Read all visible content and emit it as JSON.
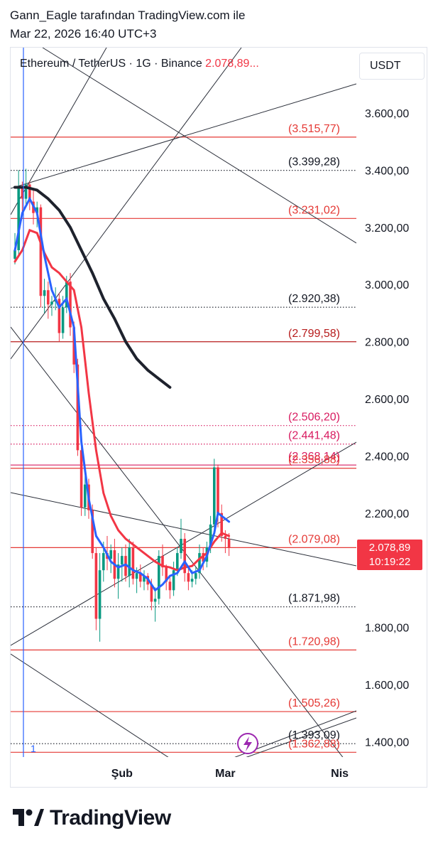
{
  "header": {
    "line1": "Gann_Eagle tarafından TradingView.com ile",
    "line2": "Mar 22, 2026 16:40 UTC+3"
  },
  "symbol": {
    "label": "Ethereum / TetherUS · 1G · Binance",
    "price": "2.078,89..."
  },
  "currency": "USDT",
  "last_price": {
    "value": "2.078,89",
    "countdown": "10:19:22",
    "color": "#f23645"
  },
  "brand": {
    "name": "TradingView",
    "icon": "tradingview-logo-icon"
  },
  "lightning_icon": "lightning-bolt-icon",
  "colors": {
    "up": "#089981",
    "down": "#f23645",
    "level": "#e53935",
    "ma_fast": "#2962ff",
    "ma_mid": "#f23645",
    "ma_slow": "#1e222d",
    "cursor": "#2962ff",
    "accent_purple": "#9c27b0"
  },
  "chart_data": {
    "type": "candlestick",
    "pair": "ETH/USDT",
    "timeframe": "1D",
    "y_range": [
      1350,
      3780
    ],
    "y_ticks": [
      {
        "value": 3600,
        "label": "3.600,00"
      },
      {
        "value": 3400,
        "label": "3.400,00"
      },
      {
        "value": 3200,
        "label": "3.200,00"
      },
      {
        "value": 3000,
        "label": "3.000,00"
      },
      {
        "value": 2800,
        "label": "2.800,00"
      },
      {
        "value": 2600,
        "label": "2.600,00"
      },
      {
        "value": 2400,
        "label": "2.400,00"
      },
      {
        "value": 2200,
        "label": "2.200,00"
      },
      {
        "value": 1800,
        "label": "1.800,00"
      },
      {
        "value": 1600,
        "label": "1.600,00"
      },
      {
        "value": 1400,
        "label": "1.400,00"
      }
    ],
    "x_ticks": [
      {
        "day": 29,
        "label": "Şub"
      },
      {
        "day": 57,
        "label": "Mar"
      },
      {
        "day": 88,
        "label": "Nis"
      }
    ],
    "x_range": [
      0,
      116
    ],
    "levels": [
      {
        "value": 3515.77,
        "label": "(3.515,77)",
        "style": "solid",
        "color": "#e53935"
      },
      {
        "value": 3399.28,
        "label": "(3.399,28)",
        "style": "dotted",
        "color": "#131722"
      },
      {
        "value": 3231.02,
        "label": "(3.231,02)",
        "style": "solid",
        "color": "#e53935"
      },
      {
        "value": 2920.38,
        "label": "(2.920,38)",
        "style": "dotted",
        "color": "#131722"
      },
      {
        "value": 2799.58,
        "label": "(2.799,58)",
        "style": "solid",
        "color": "#b71c1c"
      },
      {
        "value": 2506.2,
        "label": "(2.506,20)",
        "style": "dotted",
        "color": "#d81b60"
      },
      {
        "value": 2441.48,
        "label": "(2.441,48)",
        "style": "dotted",
        "color": "#d81b60"
      },
      {
        "value": 2368.14,
        "label": "(2.368,14)",
        "style": "solid",
        "color": "#d81b60"
      },
      {
        "value": 2356.88,
        "label": "(2.356,88)",
        "style": "solid",
        "color": "#e53935"
      },
      {
        "value": 2079.08,
        "label": "(2.079,08)",
        "style": "solid",
        "color": "#e53935"
      },
      {
        "value": 1871.98,
        "label": "(1.871,98)",
        "style": "dotted",
        "color": "#131722"
      },
      {
        "value": 1720.98,
        "label": "(1.720,98)",
        "style": "solid",
        "color": "#e53935"
      },
      {
        "value": 1505.26,
        "label": "(1.505,26)",
        "style": "solid",
        "color": "#e53935"
      },
      {
        "value": 1393.09,
        "label": "(1.393,09)",
        "style": "dotted",
        "color": "#131722"
      },
      {
        "value": 1362.88,
        "label": "(1.362,88)",
        "style": "solid",
        "color": "#e53935"
      }
    ],
    "candles": [
      {
        "d": 0,
        "o": 3090,
        "h": 3180,
        "l": 3070,
        "c": 3120
      },
      {
        "d": 1,
        "o": 3120,
        "h": 3400,
        "l": 3100,
        "c": 3340
      },
      {
        "d": 2,
        "o": 3340,
        "h": 3360,
        "l": 3250,
        "c": 3300
      },
      {
        "d": 3,
        "o": 3300,
        "h": 3405,
        "l": 3280,
        "c": 3350
      },
      {
        "d": 4,
        "o": 3350,
        "h": 3360,
        "l": 3260,
        "c": 3290
      },
      {
        "d": 5,
        "o": 3290,
        "h": 3330,
        "l": 3210,
        "c": 3250
      },
      {
        "d": 6,
        "o": 3250,
        "h": 3290,
        "l": 3200,
        "c": 3270
      },
      {
        "d": 7,
        "o": 3270,
        "h": 3280,
        "l": 2920,
        "c": 2960
      },
      {
        "d": 8,
        "o": 2960,
        "h": 3020,
        "l": 2900,
        "c": 2980
      },
      {
        "d": 9,
        "o": 2980,
        "h": 3010,
        "l": 2880,
        "c": 2930
      },
      {
        "d": 10,
        "o": 2930,
        "h": 2960,
        "l": 2890,
        "c": 2940
      },
      {
        "d": 11,
        "o": 2940,
        "h": 2990,
        "l": 2910,
        "c": 2950
      },
      {
        "d": 12,
        "o": 2950,
        "h": 2970,
        "l": 2800,
        "c": 2830
      },
      {
        "d": 13,
        "o": 2830,
        "h": 2960,
        "l": 2810,
        "c": 2920
      },
      {
        "d": 14,
        "o": 2920,
        "h": 3030,
        "l": 2900,
        "c": 3010
      },
      {
        "d": 15,
        "o": 3010,
        "h": 3040,
        "l": 2820,
        "c": 2850
      },
      {
        "d": 16,
        "o": 2850,
        "h": 2870,
        "l": 2690,
        "c": 2720
      },
      {
        "d": 17,
        "o": 2720,
        "h": 2740,
        "l": 2400,
        "c": 2420
      },
      {
        "d": 18,
        "o": 2420,
        "h": 2440,
        "l": 2190,
        "c": 2220
      },
      {
        "d": 19,
        "o": 2220,
        "h": 2330,
        "l": 2190,
        "c": 2300
      },
      {
        "d": 20,
        "o": 2300,
        "h": 2320,
        "l": 2180,
        "c": 2210
      },
      {
        "d": 21,
        "o": 2210,
        "h": 2230,
        "l": 2040,
        "c": 2060
      },
      {
        "d": 22,
        "o": 2060,
        "h": 2080,
        "l": 1790,
        "c": 1830
      },
      {
        "d": 23,
        "o": 1830,
        "h": 2060,
        "l": 1750,
        "c": 2000
      },
      {
        "d": 24,
        "o": 2000,
        "h": 2100,
        "l": 1960,
        "c": 2060
      },
      {
        "d": 25,
        "o": 2060,
        "h": 2120,
        "l": 2000,
        "c": 2040
      },
      {
        "d": 26,
        "o": 2040,
        "h": 2090,
        "l": 1990,
        "c": 2070
      },
      {
        "d": 27,
        "o": 2070,
        "h": 2110,
        "l": 1940,
        "c": 1970
      },
      {
        "d": 28,
        "o": 1970,
        "h": 2060,
        "l": 1900,
        "c": 2020
      },
      {
        "d": 29,
        "o": 2020,
        "h": 2080,
        "l": 1960,
        "c": 2050
      },
      {
        "d": 30,
        "o": 2050,
        "h": 2090,
        "l": 1960,
        "c": 1980
      },
      {
        "d": 31,
        "o": 1980,
        "h": 2110,
        "l": 1940,
        "c": 2080
      },
      {
        "d": 32,
        "o": 2080,
        "h": 2100,
        "l": 1950,
        "c": 1970
      },
      {
        "d": 33,
        "o": 1970,
        "h": 2010,
        "l": 1920,
        "c": 1990
      },
      {
        "d": 34,
        "o": 1990,
        "h": 2020,
        "l": 1940,
        "c": 1960
      },
      {
        "d": 35,
        "o": 1960,
        "h": 2000,
        "l": 1930,
        "c": 1980
      },
      {
        "d": 36,
        "o": 1980,
        "h": 1990,
        "l": 1930,
        "c": 1950
      },
      {
        "d": 37,
        "o": 1950,
        "h": 1970,
        "l": 1860,
        "c": 1890
      },
      {
        "d": 38,
        "o": 1890,
        "h": 1940,
        "l": 1820,
        "c": 1900
      },
      {
        "d": 39,
        "o": 1900,
        "h": 2070,
        "l": 1880,
        "c": 2050
      },
      {
        "d": 40,
        "o": 2050,
        "h": 2090,
        "l": 1980,
        "c": 2010
      },
      {
        "d": 41,
        "o": 2010,
        "h": 2020,
        "l": 1930,
        "c": 1960
      },
      {
        "d": 42,
        "o": 1960,
        "h": 1980,
        "l": 1900,
        "c": 1930
      },
      {
        "d": 43,
        "o": 1930,
        "h": 2030,
        "l": 1910,
        "c": 2000
      },
      {
        "d": 44,
        "o": 2000,
        "h": 2080,
        "l": 1980,
        "c": 2060
      },
      {
        "d": 45,
        "o": 2060,
        "h": 2180,
        "l": 2040,
        "c": 2110
      },
      {
        "d": 46,
        "o": 2110,
        "h": 2130,
        "l": 1960,
        "c": 1990
      },
      {
        "d": 47,
        "o": 1990,
        "h": 2010,
        "l": 1930,
        "c": 1960
      },
      {
        "d": 48,
        "o": 1960,
        "h": 2000,
        "l": 1940,
        "c": 1970
      },
      {
        "d": 49,
        "o": 1970,
        "h": 2010,
        "l": 1950,
        "c": 1990
      },
      {
        "d": 50,
        "o": 1990,
        "h": 2090,
        "l": 1970,
        "c": 2060
      },
      {
        "d": 51,
        "o": 2060,
        "h": 2080,
        "l": 2000,
        "c": 2030
      },
      {
        "d": 52,
        "o": 2030,
        "h": 2100,
        "l": 2010,
        "c": 2080
      },
      {
        "d": 53,
        "o": 2080,
        "h": 2190,
        "l": 2060,
        "c": 2160
      },
      {
        "d": 54,
        "o": 2160,
        "h": 2390,
        "l": 2140,
        "c": 2360
      },
      {
        "d": 55,
        "o": 2360,
        "h": 2370,
        "l": 2150,
        "c": 2200
      },
      {
        "d": 56,
        "o": 2200,
        "h": 2230,
        "l": 2100,
        "c": 2120
      },
      {
        "d": 57,
        "o": 2120,
        "h": 2140,
        "l": 2060,
        "c": 2110
      },
      {
        "d": 58,
        "o": 2110,
        "h": 2130,
        "l": 2050,
        "c": 2079
      }
    ],
    "ma_fast": [
      [
        0,
        3120
      ],
      [
        2,
        3250
      ],
      [
        4,
        3300
      ],
      [
        6,
        3250
      ],
      [
        8,
        3100
      ],
      [
        10,
        2980
      ],
      [
        12,
        2920
      ],
      [
        14,
        2950
      ],
      [
        16,
        2850
      ],
      [
        18,
        2450
      ],
      [
        20,
        2250
      ],
      [
        22,
        2120
      ],
      [
        24,
        2080
      ],
      [
        26,
        2030
      ],
      [
        28,
        2010
      ],
      [
        30,
        2020
      ],
      [
        32,
        2000
      ],
      [
        34,
        1990
      ],
      [
        36,
        1970
      ],
      [
        38,
        1930
      ],
      [
        40,
        1950
      ],
      [
        42,
        1980
      ],
      [
        44,
        1990
      ],
      [
        46,
        2030
      ],
      [
        48,
        1990
      ],
      [
        50,
        2000
      ],
      [
        52,
        2050
      ],
      [
        54,
        2130
      ],
      [
        55,
        2200
      ],
      [
        56,
        2190
      ],
      [
        58,
        2170
      ]
    ],
    "ma_mid": [
      [
        0,
        3080
      ],
      [
        2,
        3120
      ],
      [
        4,
        3190
      ],
      [
        6,
        3180
      ],
      [
        8,
        3110
      ],
      [
        10,
        3060
      ],
      [
        12,
        3040
      ],
      [
        14,
        3010
      ],
      [
        16,
        2980
      ],
      [
        18,
        2850
      ],
      [
        20,
        2620
      ],
      [
        22,
        2420
      ],
      [
        24,
        2270
      ],
      [
        26,
        2190
      ],
      [
        28,
        2140
      ],
      [
        30,
        2110
      ],
      [
        32,
        2090
      ],
      [
        34,
        2070
      ],
      [
        36,
        2050
      ],
      [
        38,
        2030
      ],
      [
        40,
        2015
      ],
      [
        42,
        2010
      ],
      [
        44,
        2000
      ],
      [
        46,
        2010
      ],
      [
        48,
        2015
      ],
      [
        50,
        2040
      ],
      [
        52,
        2060
      ],
      [
        54,
        2100
      ],
      [
        56,
        2130
      ],
      [
        58,
        2120
      ]
    ],
    "ma_slow": [
      [
        0,
        3340
      ],
      [
        3,
        3340
      ],
      [
        6,
        3330
      ],
      [
        9,
        3300
      ],
      [
        12,
        3260
      ],
      [
        15,
        3200
      ],
      [
        18,
        3120
      ],
      [
        21,
        3040
      ],
      [
        24,
        2950
      ],
      [
        27,
        2880
      ],
      [
        30,
        2800
      ],
      [
        33,
        2740
      ],
      [
        36,
        2700
      ],
      [
        39,
        2670
      ],
      [
        42,
        2640
      ]
    ]
  }
}
